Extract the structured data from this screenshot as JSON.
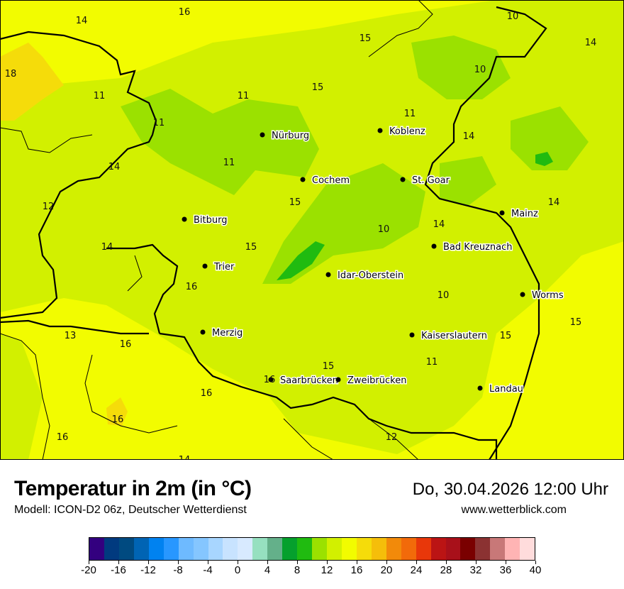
{
  "header": {
    "title": "Temperatur in 2m (in °C)",
    "subtitle": "Modell: ICON-D2 06z, Deutscher Wetterdienst",
    "datetime": "Do, 30.04.2026 12:00 Uhr",
    "website": "www.wetterblick.com"
  },
  "map": {
    "cities": [
      {
        "name": "Nürburg"
      },
      {
        "name": "Koblenz"
      },
      {
        "name": "Cochem"
      },
      {
        "name": "St. Goar"
      },
      {
        "name": "Mainz"
      },
      {
        "name": "Bitburg"
      },
      {
        "name": "Bad Kreuznach"
      },
      {
        "name": "Trier"
      },
      {
        "name": "Idar-Oberstein"
      },
      {
        "name": "Worms"
      },
      {
        "name": "Merzig"
      },
      {
        "name": "Kaiserslautern"
      },
      {
        "name": "Saarbrücken"
      },
      {
        "name": "Zweibrücken"
      },
      {
        "name": "Landau"
      }
    ],
    "values": [
      "16",
      "14",
      "15",
      "10",
      "14",
      "18",
      "10",
      "11",
      "11",
      "15",
      "11",
      "11",
      "14",
      "14",
      "11",
      "12",
      "14",
      "15",
      "14",
      "10",
      "14",
      "15",
      "16",
      "10",
      "15",
      "13",
      "16",
      "15",
      "15",
      "11",
      "16",
      "16",
      "16",
      "12",
      "16",
      "14"
    ]
  },
  "legend": {
    "colors": [
      "#33007f",
      "#013a7f",
      "#004a80",
      "#0064b4",
      "#0082f0",
      "#2897ff",
      "#6ebaff",
      "#85c6ff",
      "#a8d6ff",
      "#c8e3ff",
      "#d8eaff",
      "#96e0c0",
      "#64b08a",
      "#05a02d",
      "#20bb10",
      "#9be100",
      "#d2f000",
      "#f2fc00",
      "#f5dc0a",
      "#f5be0a",
      "#f28a0a",
      "#f26a0a",
      "#e8370a",
      "#bb1414",
      "#a8101a",
      "#7a0000",
      "#8b3232",
      "#c87878",
      "#ffb4b4",
      "#ffdcdc"
    ],
    "ticks": [
      "-20",
      "-16",
      "-12",
      "-8",
      "-4",
      "0",
      "4",
      "8",
      "12",
      "16",
      "20",
      "24",
      "28",
      "32",
      "36",
      "40"
    ]
  }
}
